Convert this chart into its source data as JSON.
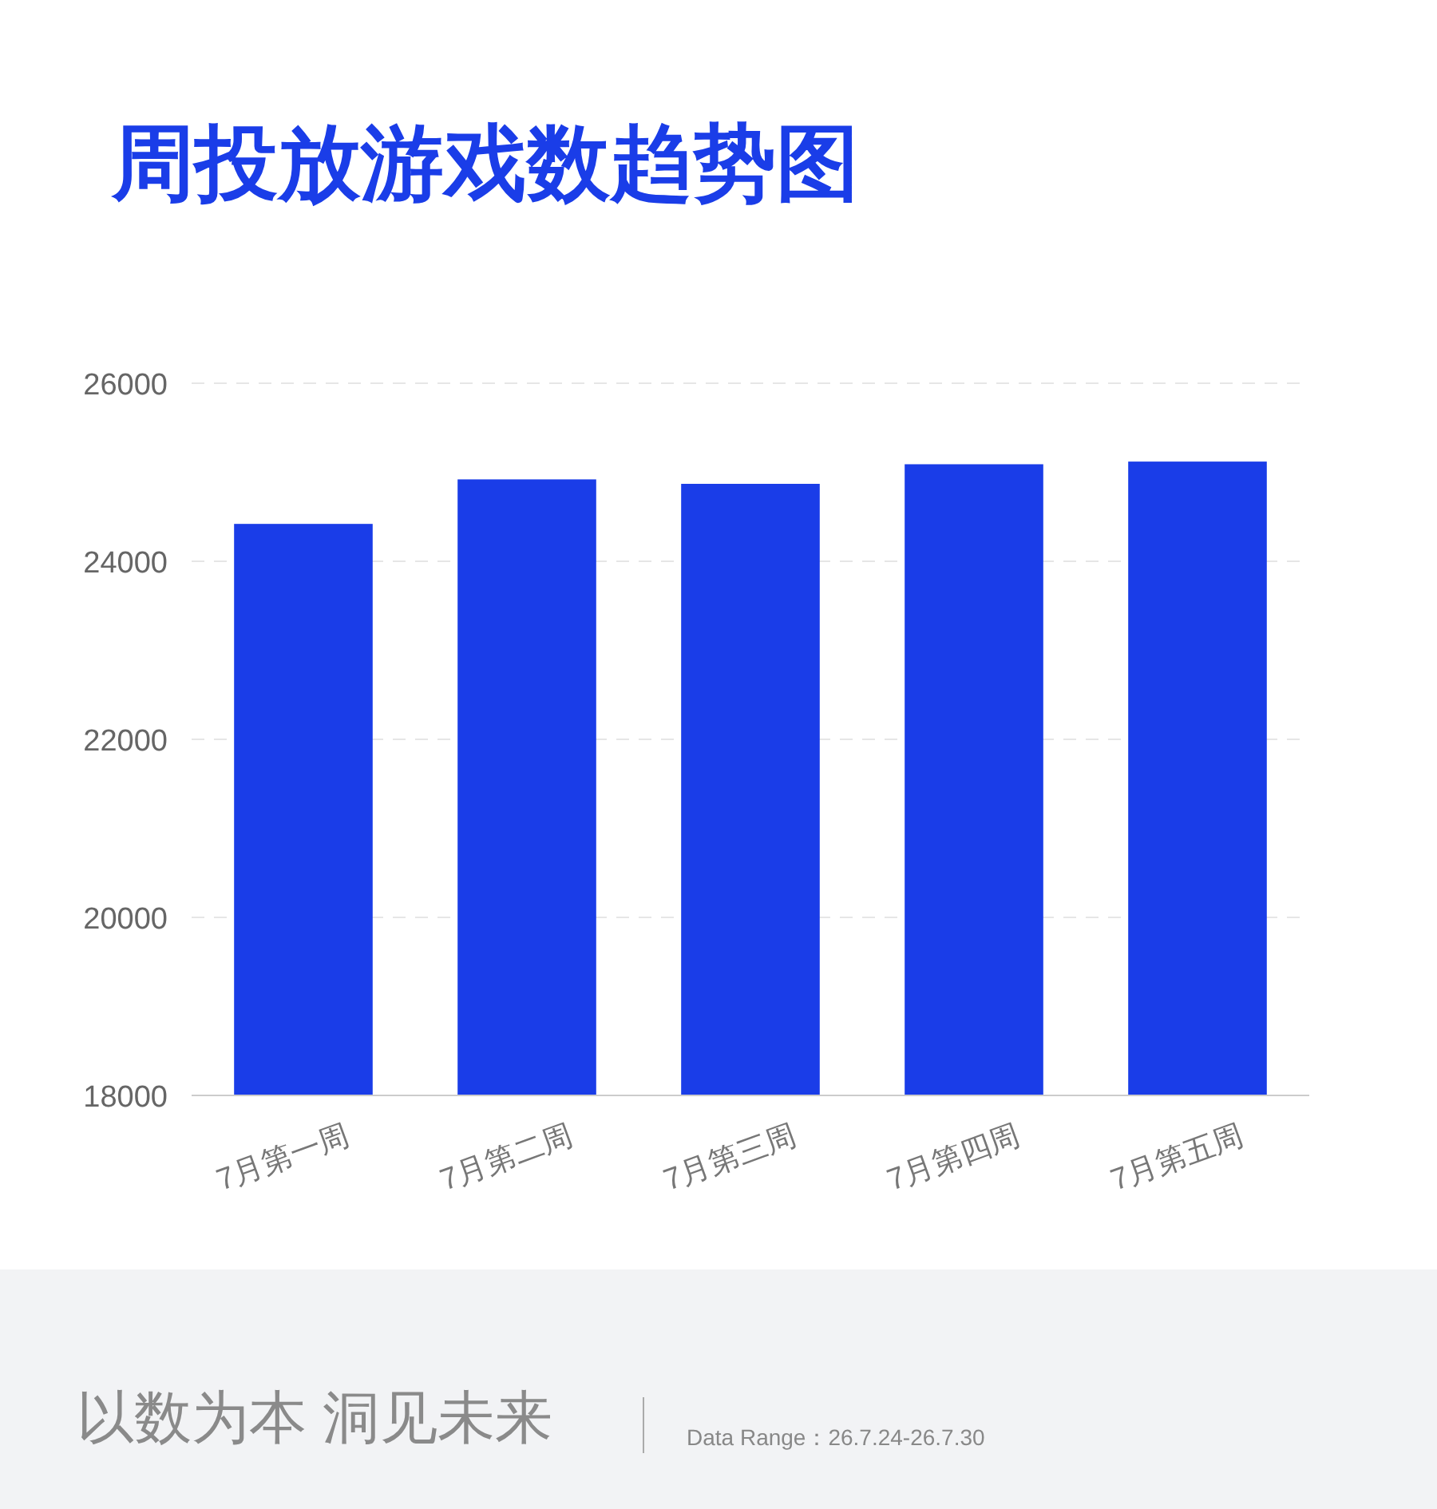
{
  "chart_data": {
    "type": "bar",
    "title": "周投放游戏数趋势图",
    "categories": [
      "7月第一周",
      "7月第二周",
      "7月第三周",
      "7月第四周",
      "7月第五周"
    ],
    "values": [
      24420,
      24920,
      24870,
      25090,
      25120
    ],
    "color": "#1a3de8",
    "ylim": [
      18000,
      26000
    ],
    "yticks": [
      18000,
      20000,
      22000,
      24000,
      26000
    ],
    "grid": "y",
    "annotations": [
      "以数为本 洞见未来",
      "Data Range：26.7.24-26.7.30"
    ]
  }
}
